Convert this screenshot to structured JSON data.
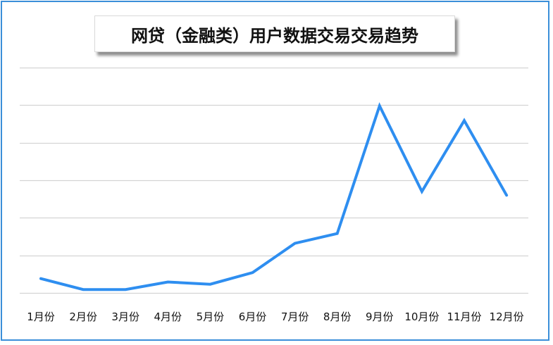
{
  "chart_data": {
    "type": "line",
    "title": "网贷（金融类）用户数据交易交易趋势",
    "xlabel": "",
    "ylabel": "",
    "categories": [
      "1月份",
      "2月份",
      "3月份",
      "4月份",
      "5月份",
      "6月份",
      "7月份",
      "8月份",
      "9月份",
      "10月份",
      "11月份",
      "12月份"
    ],
    "series": [
      {
        "name": "",
        "values": [
          0.38,
          0.09,
          0.09,
          0.29,
          0.23,
          0.54,
          1.32,
          1.58,
          4.98,
          2.7,
          4.59,
          2.6
        ],
        "color": "#2e8ef0"
      }
    ],
    "ylim": [
      -0.2,
      6.0
    ],
    "y_gridlines": [
      0,
      1,
      2,
      3,
      4,
      5,
      6
    ],
    "grid": true,
    "y_tick_labels_shown": false,
    "legend": "none"
  }
}
